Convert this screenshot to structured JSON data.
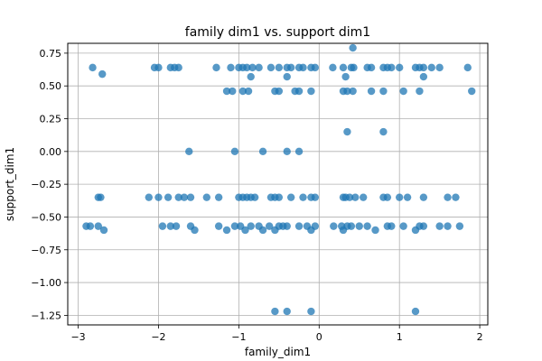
{
  "chart_data": {
    "type": "scatter",
    "title": "family dim1 vs. support dim1",
    "xlabel": "family_dim1",
    "ylabel": "support_dim1",
    "xlim": [
      -3.13,
      2.1
    ],
    "ylim": [
      -1.323,
      0.825
    ],
    "grid": true,
    "marker_color": "#1f77b4",
    "marker_alpha": 0.75,
    "xticks": [
      {
        "v": -3,
        "label": "−3"
      },
      {
        "v": -2,
        "label": "−2"
      },
      {
        "v": -1,
        "label": "−1"
      },
      {
        "v": 0,
        "label": "0"
      },
      {
        "v": 1,
        "label": "1"
      },
      {
        "v": 2,
        "label": "2"
      }
    ],
    "yticks": [
      {
        "v": 0.75,
        "label": "0.75"
      },
      {
        "v": 0.5,
        "label": "0.50"
      },
      {
        "v": 0.25,
        "label": "0.25"
      },
      {
        "v": 0,
        "label": "0.00"
      },
      {
        "v": -0.25,
        "label": "−0.25"
      },
      {
        "v": -0.5,
        "label": "−0.50"
      },
      {
        "v": -0.75,
        "label": "−0.75"
      },
      {
        "v": -1.0,
        "label": "−1.00"
      },
      {
        "v": -1.25,
        "label": "−1.25"
      }
    ],
    "points": [
      [
        -2.82,
        0.64
      ],
      [
        -2.7,
        0.59
      ],
      [
        -2.05,
        0.64
      ],
      [
        -2.0,
        0.64
      ],
      [
        -1.85,
        0.64
      ],
      [
        -1.8,
        0.64
      ],
      [
        -1.75,
        0.64
      ],
      [
        -1.28,
        0.64
      ],
      [
        -1.1,
        0.64
      ],
      [
        -1.0,
        0.64
      ],
      [
        -0.95,
        0.64
      ],
      [
        -0.9,
        0.64
      ],
      [
        -0.83,
        0.64
      ],
      [
        -0.75,
        0.64
      ],
      [
        -0.6,
        0.64
      ],
      [
        -0.5,
        0.64
      ],
      [
        -0.4,
        0.64
      ],
      [
        -0.35,
        0.64
      ],
      [
        -0.25,
        0.64
      ],
      [
        -0.2,
        0.64
      ],
      [
        -0.1,
        0.64
      ],
      [
        -0.05,
        0.64
      ],
      [
        0.17,
        0.64
      ],
      [
        0.3,
        0.64
      ],
      [
        0.4,
        0.64
      ],
      [
        0.43,
        0.64
      ],
      [
        0.6,
        0.64
      ],
      [
        0.65,
        0.64
      ],
      [
        0.8,
        0.64
      ],
      [
        0.85,
        0.64
      ],
      [
        0.9,
        0.64
      ],
      [
        1.0,
        0.64
      ],
      [
        1.2,
        0.64
      ],
      [
        1.25,
        0.64
      ],
      [
        1.3,
        0.64
      ],
      [
        1.4,
        0.64
      ],
      [
        1.5,
        0.64
      ],
      [
        1.85,
        0.64
      ],
      [
        -1.15,
        0.46
      ],
      [
        -1.08,
        0.46
      ],
      [
        -0.95,
        0.46
      ],
      [
        -0.88,
        0.46
      ],
      [
        -0.55,
        0.46
      ],
      [
        -0.5,
        0.46
      ],
      [
        -0.3,
        0.46
      ],
      [
        -0.25,
        0.46
      ],
      [
        -0.1,
        0.46
      ],
      [
        0.3,
        0.46
      ],
      [
        0.35,
        0.46
      ],
      [
        0.42,
        0.46
      ],
      [
        0.65,
        0.46
      ],
      [
        0.8,
        0.46
      ],
      [
        1.05,
        0.46
      ],
      [
        1.25,
        0.46
      ],
      [
        1.9,
        0.46
      ],
      [
        -0.85,
        0.57
      ],
      [
        -0.4,
        0.57
      ],
      [
        0.33,
        0.57
      ],
      [
        0.42,
        0.79
      ],
      [
        1.3,
        0.57
      ],
      [
        0.35,
        0.15
      ],
      [
        0.8,
        0.15
      ],
      [
        -1.62,
        0.0
      ],
      [
        -1.05,
        0.0
      ],
      [
        -0.7,
        0.0
      ],
      [
        -0.4,
        0.0
      ],
      [
        -0.25,
        0.0
      ],
      [
        -2.75,
        -0.35
      ],
      [
        -2.72,
        -0.35
      ],
      [
        -2.12,
        -0.35
      ],
      [
        -2.0,
        -0.35
      ],
      [
        -1.88,
        -0.35
      ],
      [
        -1.75,
        -0.35
      ],
      [
        -1.68,
        -0.35
      ],
      [
        -1.6,
        -0.35
      ],
      [
        -1.4,
        -0.35
      ],
      [
        -1.25,
        -0.35
      ],
      [
        -1.0,
        -0.35
      ],
      [
        -0.95,
        -0.35
      ],
      [
        -0.9,
        -0.35
      ],
      [
        -0.85,
        -0.35
      ],
      [
        -0.8,
        -0.35
      ],
      [
        -0.6,
        -0.35
      ],
      [
        -0.55,
        -0.35
      ],
      [
        -0.5,
        -0.35
      ],
      [
        -0.35,
        -0.35
      ],
      [
        -0.2,
        -0.35
      ],
      [
        -0.1,
        -0.35
      ],
      [
        -0.05,
        -0.35
      ],
      [
        0.3,
        -0.35
      ],
      [
        0.33,
        -0.35
      ],
      [
        0.38,
        -0.35
      ],
      [
        0.45,
        -0.35
      ],
      [
        0.55,
        -0.35
      ],
      [
        0.8,
        -0.35
      ],
      [
        0.85,
        -0.35
      ],
      [
        1.0,
        -0.35
      ],
      [
        1.1,
        -0.35
      ],
      [
        1.3,
        -0.35
      ],
      [
        1.6,
        -0.35
      ],
      [
        1.7,
        -0.35
      ],
      [
        -2.9,
        -0.57
      ],
      [
        -2.85,
        -0.57
      ],
      [
        -2.75,
        -0.57
      ],
      [
        -2.68,
        -0.6
      ],
      [
        -1.95,
        -0.57
      ],
      [
        -1.85,
        -0.57
      ],
      [
        -1.78,
        -0.57
      ],
      [
        -1.6,
        -0.57
      ],
      [
        -1.55,
        -0.6
      ],
      [
        -1.25,
        -0.57
      ],
      [
        -1.15,
        -0.6
      ],
      [
        -1.05,
        -0.57
      ],
      [
        -0.98,
        -0.57
      ],
      [
        -0.92,
        -0.6
      ],
      [
        -0.85,
        -0.57
      ],
      [
        -0.75,
        -0.57
      ],
      [
        -0.7,
        -0.6
      ],
      [
        -0.62,
        -0.57
      ],
      [
        -0.55,
        -0.6
      ],
      [
        -0.5,
        -0.57
      ],
      [
        -0.45,
        -0.57
      ],
      [
        -0.4,
        -0.57
      ],
      [
        -0.25,
        -0.57
      ],
      [
        -0.15,
        -0.57
      ],
      [
        -0.1,
        -0.6
      ],
      [
        -0.05,
        -0.57
      ],
      [
        0.18,
        -0.57
      ],
      [
        0.28,
        -0.57
      ],
      [
        0.3,
        -0.6
      ],
      [
        0.35,
        -0.57
      ],
      [
        0.4,
        -0.57
      ],
      [
        0.5,
        -0.57
      ],
      [
        0.6,
        -0.57
      ],
      [
        0.7,
        -0.6
      ],
      [
        0.85,
        -0.57
      ],
      [
        0.9,
        -0.57
      ],
      [
        1.05,
        -0.57
      ],
      [
        1.2,
        -0.6
      ],
      [
        1.25,
        -0.57
      ],
      [
        1.3,
        -0.57
      ],
      [
        1.5,
        -0.57
      ],
      [
        1.6,
        -0.57
      ],
      [
        1.75,
        -0.57
      ],
      [
        -0.55,
        -1.22
      ],
      [
        -0.4,
        -1.22
      ],
      [
        -0.1,
        -1.22
      ],
      [
        1.2,
        -1.22
      ]
    ]
  }
}
